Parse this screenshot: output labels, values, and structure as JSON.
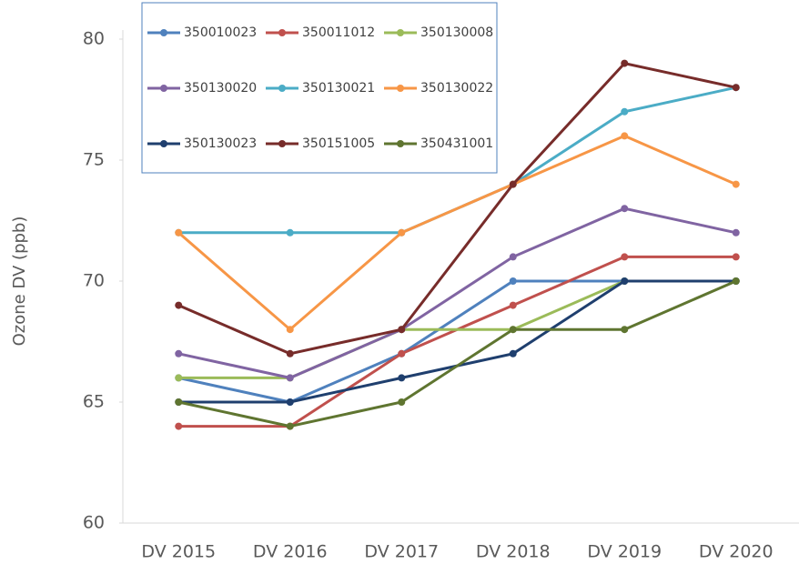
{
  "chart_data": {
    "type": "line",
    "y_label": "Ozone DV (ppb)",
    "categories": [
      "DV 2015",
      "DV 2016",
      "DV 2017",
      "DV 2018",
      "DV 2019",
      "DV 2020"
    ],
    "ylim": [
      60,
      80
    ],
    "yticks": [
      60,
      65,
      70,
      75,
      80
    ],
    "grid": false,
    "legend": "top-left",
    "series": [
      {
        "name": "350010023",
        "color": "#4f81bd",
        "values": [
          66,
          65,
          67,
          70,
          70,
          70
        ]
      },
      {
        "name": "350011012",
        "color": "#c0504d",
        "values": [
          64,
          64,
          67,
          69,
          71,
          71
        ]
      },
      {
        "name": "350130008",
        "color": "#9bbb59",
        "values": [
          66,
          66,
          68,
          68,
          70,
          70
        ]
      },
      {
        "name": "350130020",
        "color": "#8064a2",
        "values": [
          67,
          66,
          68,
          71,
          73,
          72
        ]
      },
      {
        "name": "350130021",
        "color": "#4bacc6",
        "values": [
          72,
          72,
          72,
          74,
          77,
          78
        ]
      },
      {
        "name": "350130022",
        "color": "#f79646",
        "values": [
          72,
          68,
          72,
          74,
          76,
          74
        ]
      },
      {
        "name": "350130023",
        "color": "#1f3f6e",
        "values": [
          65,
          65,
          66,
          67,
          70,
          70
        ]
      },
      {
        "name": "350151005",
        "color": "#772c2a",
        "values": [
          69,
          67,
          68,
          74,
          79,
          78
        ]
      },
      {
        "name": "350431001",
        "color": "#5f7530",
        "values": [
          65,
          64,
          65,
          68,
          68,
          70
        ]
      }
    ]
  }
}
